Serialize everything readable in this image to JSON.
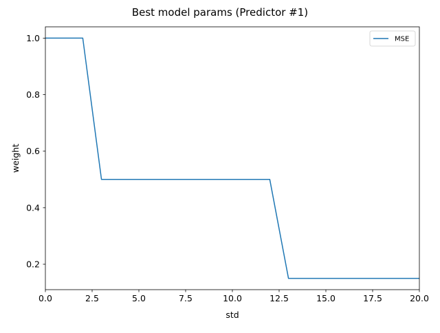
{
  "chart_data": {
    "type": "line",
    "title": "Best model params (Predictor #1)",
    "xlabel": "std",
    "ylabel": "weight",
    "xlim": [
      0,
      20
    ],
    "ylim": [
      0.11,
      1.04
    ],
    "x_ticks": [
      0.0,
      2.5,
      5.0,
      7.5,
      10.0,
      12.5,
      15.0,
      17.5,
      20.0
    ],
    "x_tick_labels": [
      "0.0",
      "2.5",
      "5.0",
      "7.5",
      "10.0",
      "12.5",
      "15.0",
      "17.5",
      "20.0"
    ],
    "y_ticks": [
      0.2,
      0.4,
      0.6,
      0.8,
      1.0
    ],
    "y_tick_labels": [
      "0.2",
      "0.4",
      "0.6",
      "0.8",
      "1.0"
    ],
    "grid": false,
    "legend_position": "top-right",
    "series": [
      {
        "name": "MSE",
        "color": "#1f77b4",
        "x": [
          0,
          1,
          2,
          3,
          4,
          5,
          6,
          7,
          8,
          9,
          10,
          11,
          12,
          13,
          14,
          15,
          16,
          17,
          18,
          19,
          20
        ],
        "y": [
          1.0,
          1.0,
          1.0,
          0.5,
          0.5,
          0.5,
          0.5,
          0.5,
          0.5,
          0.5,
          0.5,
          0.5,
          0.5,
          0.15,
          0.15,
          0.15,
          0.15,
          0.15,
          0.15,
          0.15,
          0.15
        ]
      }
    ]
  }
}
